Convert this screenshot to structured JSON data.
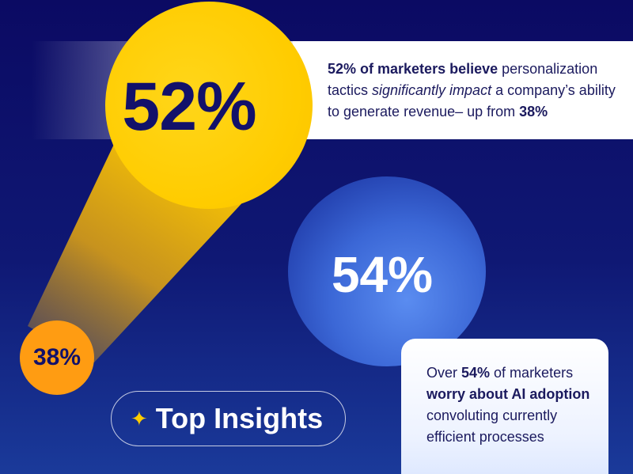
{
  "stats": {
    "big_52": "52%",
    "big_54": "54%",
    "small_38": "38%"
  },
  "top_card": {
    "bold_intro": "52% of marketers believe",
    "text1": " personalization tactics ",
    "italic": "significantly impact",
    "text2": " a company’s ability to generate revenue– up from ",
    "bold_end": "38%"
  },
  "bottom_card": {
    "text1": "Over ",
    "bold1": "54%",
    "text2": " of marketers ",
    "bold2": "worry about AI adoption",
    "text3": " convoluting currently efficient processes"
  },
  "pill": {
    "star": "✦",
    "label": "Top Insights"
  },
  "colors": {
    "background": "#0b0a63",
    "yellow": "#ffcc00",
    "orange": "#ff9c12",
    "blue": "#3b67d6",
    "navy_text": "#1b1a5e"
  }
}
